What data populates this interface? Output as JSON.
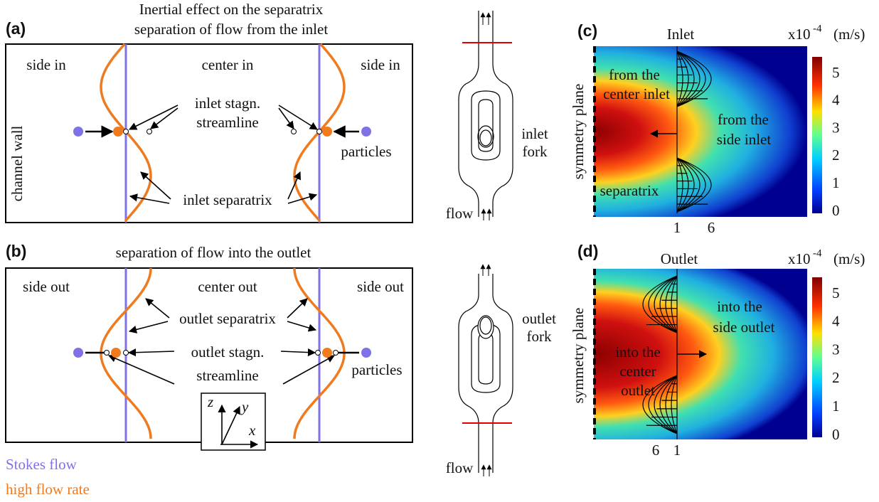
{
  "panel_a": {
    "label": "(a)",
    "title": [
      "Inertial effect on the separatrix",
      "separation of flow from the inlet"
    ],
    "regions": [
      "side in",
      "center in",
      "side in"
    ],
    "wall": "channel wall",
    "stagnation": [
      "inlet stagn.",
      "streamline"
    ],
    "separatrix": "inlet separatrix",
    "particles": "particles"
  },
  "panel_b": {
    "label": "(b)",
    "title": "separation of flow into the outlet",
    "regions": [
      "side out",
      "center out",
      "side out"
    ],
    "separatrix": "outlet separatrix",
    "stagnation": [
      "outlet stagn.",
      "streamline"
    ],
    "particles": "particles",
    "axes": [
      "z",
      "y",
      "x"
    ]
  },
  "inlet_fork": {
    "label": [
      "inlet",
      "fork"
    ],
    "flow": "flow"
  },
  "outlet_fork": {
    "label": [
      "outlet",
      "fork"
    ],
    "flow": "flow"
  },
  "panel_c": {
    "label": "(c)",
    "title": "Inlet",
    "unit": [
      "x10",
      "-4",
      "(m/s)"
    ],
    "symmetry": "symmetry plane",
    "center_text": [
      "from the",
      "center inlet"
    ],
    "side_text": [
      "from the",
      "side inlet"
    ],
    "separatrix": "separatrix",
    "profiles": [
      "1",
      "6"
    ],
    "colorbar_ticks": [
      "0",
      "1",
      "2",
      "3",
      "4",
      "5"
    ]
  },
  "panel_d": {
    "label": "(d)",
    "title": "Outlet",
    "unit": [
      "x10",
      "-4",
      "(m/s)"
    ],
    "symmetry": "symmetry plane",
    "side_text": [
      "into the",
      "side outlet"
    ],
    "center_text": [
      "into the",
      "center",
      "outlet"
    ],
    "profiles": [
      "6",
      "1"
    ],
    "colorbar_ticks": [
      "0",
      "1",
      "2",
      "3",
      "4",
      "5"
    ]
  },
  "legend": [
    "Stokes flow",
    "high flow rate"
  ]
}
